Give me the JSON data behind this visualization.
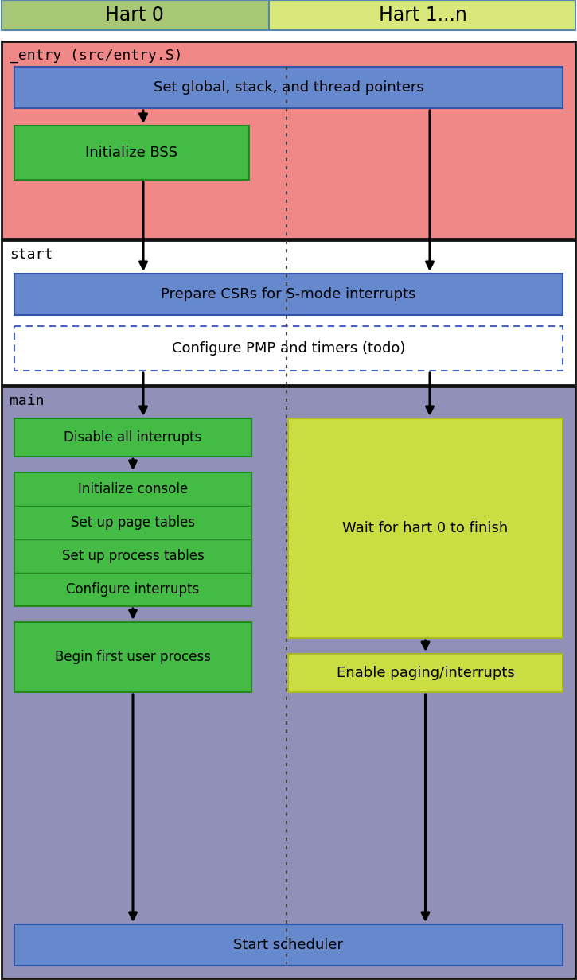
{
  "title_header_hart0": "Hart 0",
  "title_header_hart1": "Hart 1...n",
  "header_hart0_color": "#a8c878",
  "header_hart1_color": "#d8e87a",
  "section_entry_label": "_entry (src/entry.S)",
  "section_entry_bg": "#f08888",
  "section_start_label": "start",
  "section_start_bg": "#ffffff",
  "section_main_label": "main",
  "section_main_bg": "#9090b8",
  "box_blue_color": "#6688cc",
  "box_blue_edge": "#3355aa",
  "box_green_color": "#44bb44",
  "box_green_edge": "#228822",
  "box_yg_color": "#ccdd44",
  "box_yg_edge": "#aabb22",
  "box_white_color": "#ffffff",
  "box_dashed_edge": "#4466cc",
  "header_edge": "#5588aa",
  "section_edge": "#111111",
  "arrow_color": "#000000",
  "dot_divider_color": "#444444",
  "node_set_pointers": "Set global, stack, and thread pointers",
  "node_init_bss": "Initialize BSS",
  "node_prepare_csrs": "Prepare CSRs for S-mode interrupts",
  "node_configure_pmp": "Configure PMP and timers (todo)",
  "node_disable_interrupts": "Disable all interrupts",
  "node_init_console": "Initialize console",
  "node_page_tables": "Set up page tables",
  "node_process_tables": "Set up process tables",
  "node_configure_interrupts": "Configure interrupts",
  "node_first_user": "Begin first user process",
  "node_wait_hart0": "Wait for hart 0 to finish",
  "node_enable_paging": "Enable paging/interrupts",
  "node_scheduler": "Start scheduler",
  "fig_width": 7.25,
  "fig_height": 12.32
}
